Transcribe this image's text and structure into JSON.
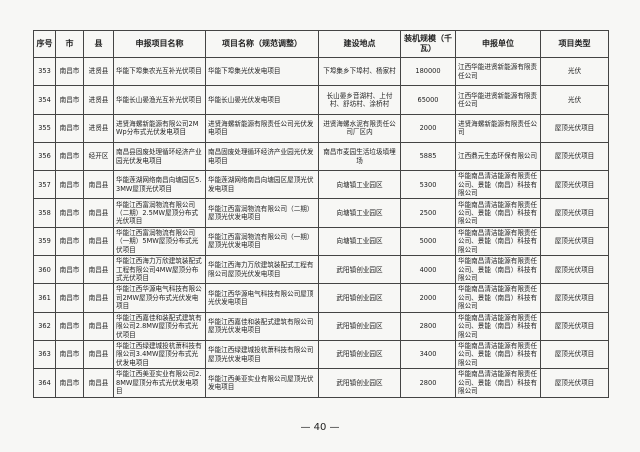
{
  "table": {
    "header": [
      "序号",
      "市",
      "县",
      "申报项目名称",
      "项目名称（规范调整）",
      "建设地点",
      "装机规模（千瓦）",
      "申报单位",
      "项目类型"
    ],
    "rows": [
      [
        "353",
        "南昌市",
        "进贤县",
        "华能下埠集农光互补光伏项目",
        "华能下埠集光伏发电项目",
        "下埠集乡下埠村、杨家村",
        "180000",
        "江西华能进贤新能源有限责任公司",
        "光伏"
      ],
      [
        "354",
        "南昌市",
        "进贤县",
        "华能长山晏渔光互补光伏项目",
        "华能长山晏光伏发电项目",
        "长山晏乡音湖村、上付村、舒坊村、涂桥村",
        "65000",
        "江西华能进贤新能源有限责任公司",
        "光伏"
      ],
      [
        "355",
        "南昌市",
        "进贤县",
        "进贤海螺新能源有限公司2MWp分布式光伏发电项目",
        "进贤海螺新能源有限责任公司光伏发电项目",
        "进贤海螺水泥有限责任公司厂区内",
        "2000",
        "进贤海螺新能源有限责任公司",
        "屋顶光伏项目"
      ],
      [
        "356",
        "南昌市",
        "经开区",
        "南昌县固废处理循环经济产业园光伏发电项目",
        "南昌固废处理循环经济产业园光伏发电项目",
        "南昌市麦园生活垃圾填埋场",
        "5885",
        "江西鼎元生态环保有限公司",
        "屋顶光伏项目"
      ],
      [
        "357",
        "南昌市",
        "南昌县",
        "华能莲湖网络南昌向塘园区5.3MW屋顶光伏项目",
        "华能莲湖网络南昌向塘园区屋顶光伏发电项目",
        "向塘镇工业园区",
        "5300",
        "华能南昌清洁能源有限责任公司、景能（南昌）科技有限公司",
        "屋顶光伏项目"
      ],
      [
        "358",
        "南昌市",
        "南昌县",
        "华能江西富润物流有限公司（二期）2.5MW屋顶分布式光伏项目",
        "华能江西富润物流有限公司（二期）屋顶光伏发电项目",
        "向塘镇工业园区",
        "2500",
        "华能南昌清洁能源有限责任公司、景能（南昌）科技有限公司",
        "屋顶光伏项目"
      ],
      [
        "359",
        "南昌市",
        "南昌县",
        "华能江西富润物流有限公司（一期）5MW屋顶分布式光伏项目",
        "华能江西富润物流有限公司（一期）屋顶光伏发电项目",
        "向塘镇工业园区",
        "5000",
        "华能南昌清洁能源有限责任公司、景能（南昌）科技有限公司",
        "屋顶光伏项目"
      ],
      [
        "360",
        "南昌市",
        "南昌县",
        "华能江西海力万欣建筑装配式工程有限公司4MW屋顶分布式光伏项目",
        "华能江西海力万欣建筑装配式工程有限公司屋顶光伏发电项目",
        "武阳镇创业园区",
        "4000",
        "华能南昌清洁能源有限责任公司、景能（南昌）科技有限公司",
        "屋顶光伏项目"
      ],
      [
        "361",
        "南昌市",
        "南昌县",
        "华能江西华源电气科技有限公司2MW屋顶分布式光伏发电项目",
        "华能江西华源电气科技有限公司屋顶光伏发电项目",
        "武阳镇创业园区",
        "2000",
        "华能南昌清洁能源有限责任公司、景能（南昌）科技有限公司",
        "屋顶光伏项目"
      ],
      [
        "362",
        "南昌市",
        "南昌县",
        "华能江西嘉佳和装配式建筑有限公司2.8MW屋顶分布式光伏项目",
        "华能江西嘉佳和装配式建筑有限公司屋顶光伏发电项目",
        "武阳镇创业园区",
        "2800",
        "华能南昌清洁能源有限责任公司、景能（南昌）科技有限公司",
        "屋顶光伏项目"
      ],
      [
        "363",
        "南昌市",
        "南昌县",
        "华能江西绿建城投杭萧科技有限公司3.4MW屋顶分布式光伏发电项目",
        "华能江西绿建城投杭萧科技有限公司屋顶光伏发电项目",
        "武阳镇创业园区",
        "3400",
        "华能南昌清洁能源有限责任公司、景能（南昌）科技有限公司",
        "屋顶光伏项目"
      ],
      [
        "364",
        "南昌市",
        "南昌县",
        "华能江西美亚实业有限公司2.8MW屋顶分布式光伏发电项目",
        "华能江西美亚实业有限公司屋顶光伏发电项目",
        "武阳镇创业园区",
        "2800",
        "华能南昌清洁能源有限责任公司、景能（南昌）科技有限公司",
        "屋顶光伏项目"
      ]
    ]
  },
  "footer": "— 40 —"
}
